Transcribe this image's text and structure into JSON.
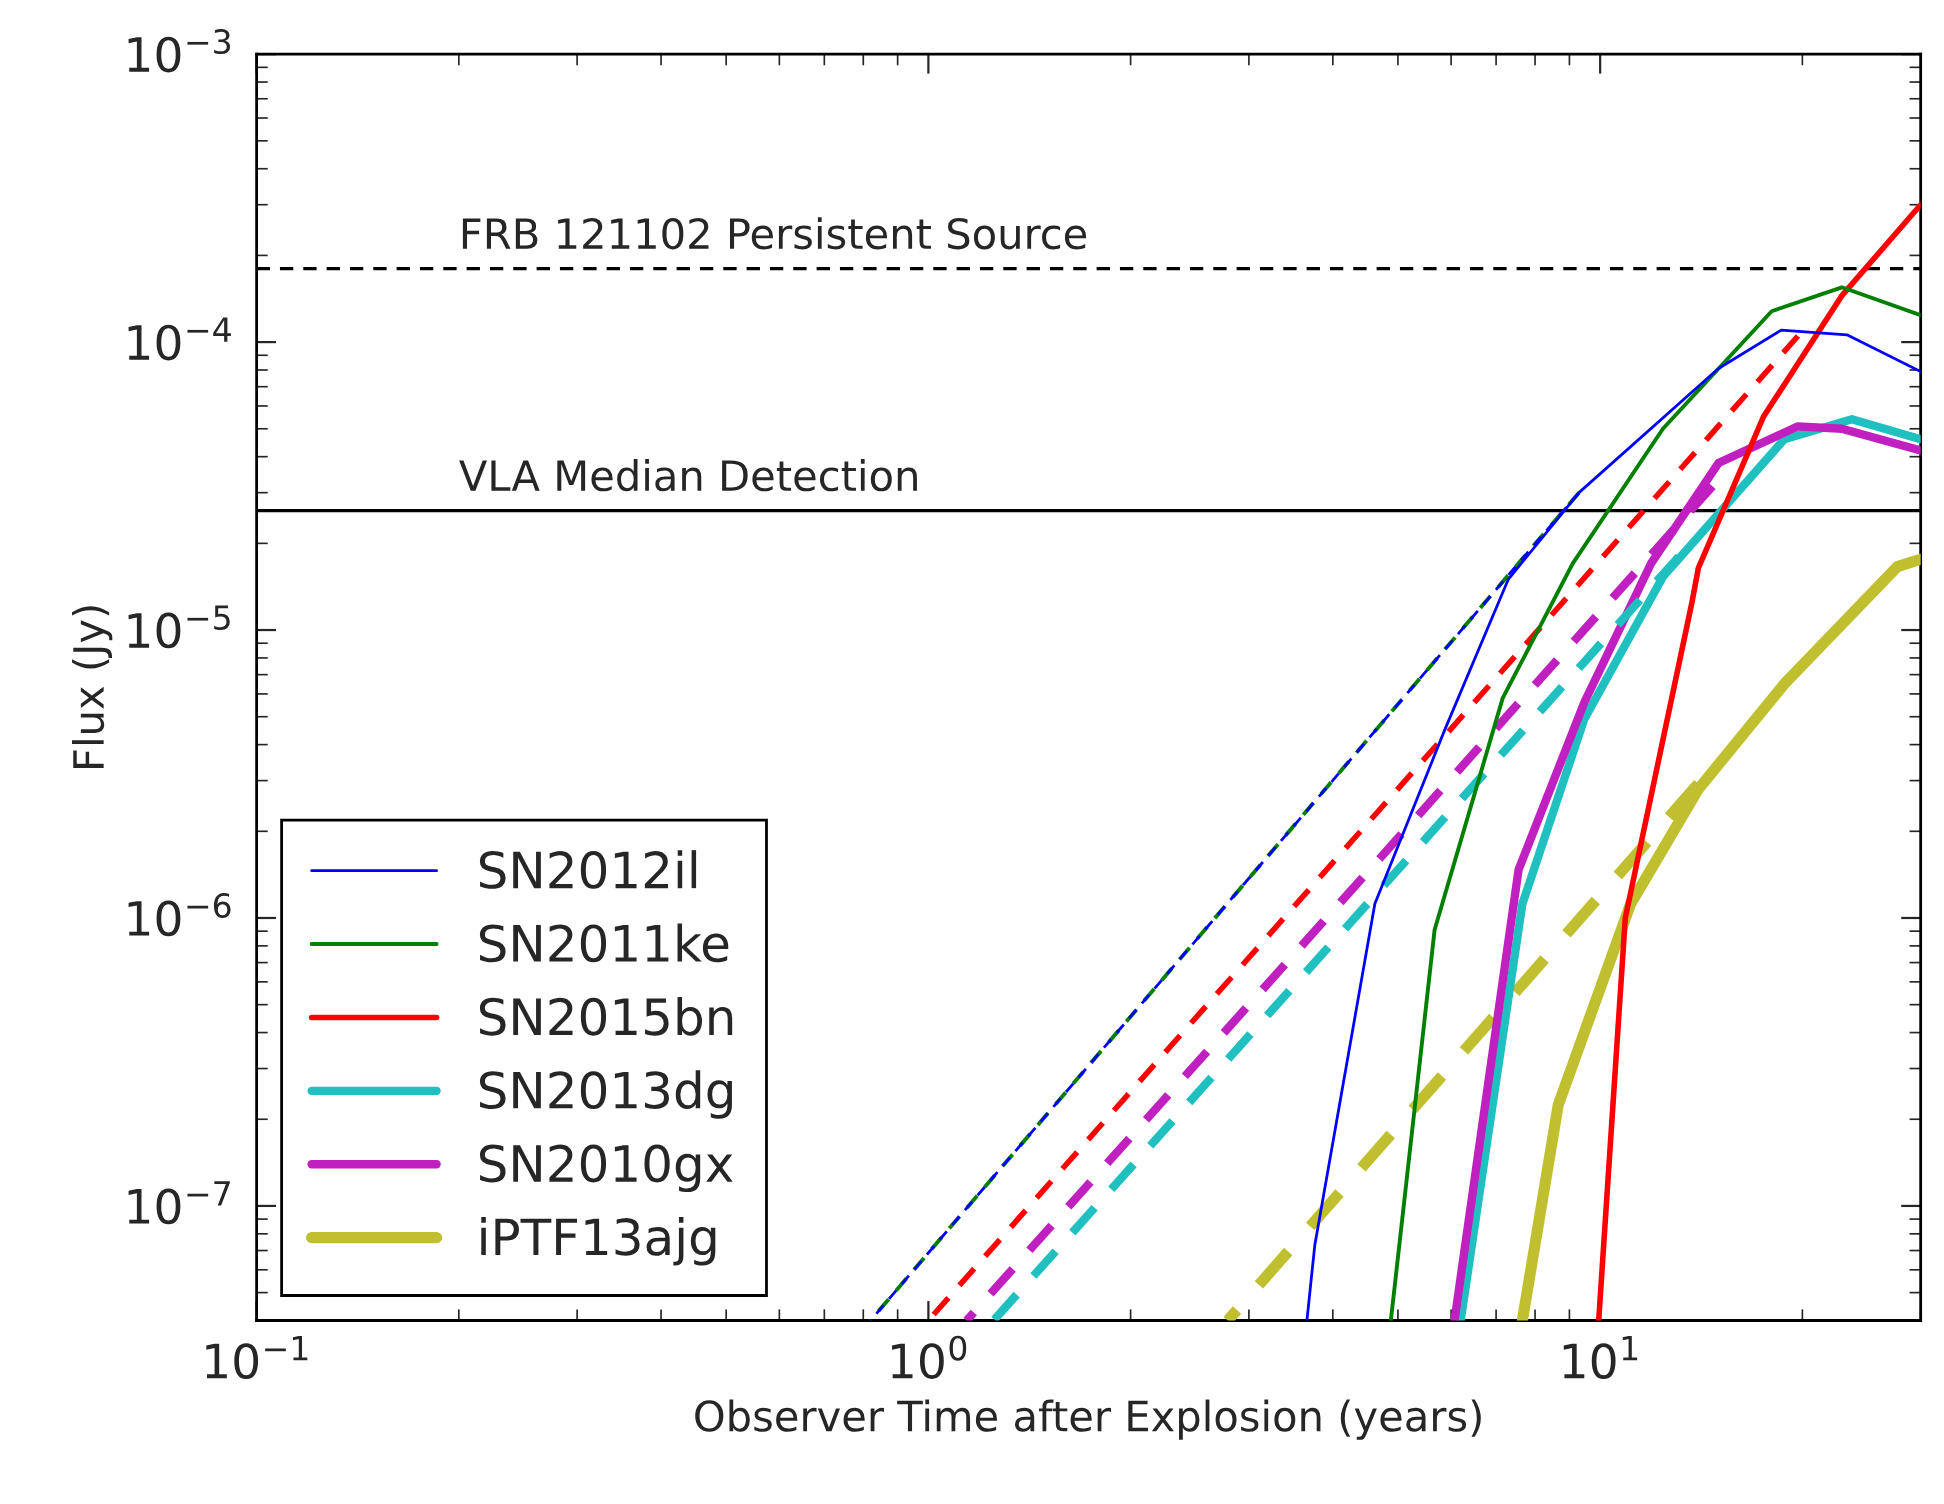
{
  "chart_data": {
    "type": "line",
    "xlabel": "Observer Time after Explosion (years)",
    "ylabel": "Flux (Jy)",
    "log": "xy",
    "grid": false,
    "legend": "bottom left",
    "xlim": [
      0.1,
      30
    ],
    "ylim": [
      4e-08,
      0.001
    ],
    "xticks": [
      {
        "value": 0.1,
        "label": "10$^{−1}$"
      },
      {
        "value": 1,
        "label": "10$^{0}$"
      },
      {
        "value": 10,
        "label": "10$^{1}$"
      }
    ],
    "yticks": [
      {
        "value": 1e-07,
        "label": "10$^{−7}$"
      },
      {
        "value": 1e-06,
        "label": "10$^{−6}$"
      },
      {
        "value": 1e-05,
        "label": "10$^{−5}$"
      },
      {
        "value": 0.0001,
        "label": "10$^{−4}$"
      },
      {
        "value": 0.001,
        "label": "10$^{−3}$"
      }
    ],
    "ref_lines": [
      {
        "axis": "y",
        "value": 0.00018,
        "label": "FRB 121102 Persistent Source",
        "color": "#000000",
        "line_style": "dashed"
      },
      {
        "axis": "y",
        "value": 2.6e-05,
        "label": "VLA Median Detection",
        "color": "#000000",
        "line_style": "solid"
      }
    ],
    "series": [
      {
        "name": "SN2012il",
        "color": "#0000ff",
        "line_style": "solid",
        "x": [
          3.66,
          3.76,
          4.62,
          5.87,
          7.3,
          9.3,
          15.0,
          18.6,
          23.3,
          30
        ],
        "values": [
          4e-08,
          7.3e-08,
          1.12e-06,
          4.5e-06,
          1.5e-05,
          3e-05,
          8.1e-05,
          0.00011,
          0.000106,
          7.9e-05
        ]
      },
      {
        "name": "SN2011ke",
        "color": "#008000",
        "line_style": "solid",
        "x": [
          4.88,
          5.1,
          5.67,
          7.16,
          9.1,
          12.4,
          18.0,
          22.9,
          30
        ],
        "values": [
          4e-08,
          1e-07,
          9.1e-07,
          5.8e-06,
          1.7e-05,
          5e-05,
          0.000128,
          0.000155,
          0.000124
        ]
      },
      {
        "name": "SN2015bn",
        "color": "#ff0000",
        "line_style": "solid",
        "x": [
          9.95,
          10.9,
          13.7,
          14.0,
          17.5,
          22.9,
          30
        ],
        "values": [
          4e-08,
          1e-06,
          1.25e-05,
          1.64e-05,
          5.5e-05,
          0.000145,
          0.0003
        ]
      },
      {
        "name": "SN2013dg",
        "color": "#20c0c0",
        "line_style": "solid",
        "x": [
          6.2,
          7.66,
          9.47,
          12.4,
          18.8,
          23.7,
          30
        ],
        "values": [
          4e-08,
          1.12e-06,
          4.9e-06,
          1.53e-05,
          4.6e-05,
          5.4e-05,
          4.6e-05
        ]
      },
      {
        "name": "SN2010gx",
        "color": "#bf20bf",
        "line_style": "solid",
        "x": [
          6.07,
          7.56,
          9.47,
          11.9,
          15.0,
          19.7,
          22.9,
          30
        ],
        "values": [
          4e-08,
          1.47e-06,
          5.6e-06,
          1.7e-05,
          3.8e-05,
          5.1e-05,
          5e-05,
          4.2e-05
        ]
      },
      {
        "name": "iPTF13ajg",
        "color": "#bfbf30",
        "line_style": "solid",
        "x": [
          7.66,
          8.66,
          11.1,
          14.0,
          18.8,
          27.7,
          30
        ],
        "values": [
          4e-08,
          2.24e-07,
          1.12e-06,
          2.8e-06,
          6.5e-06,
          1.66e-05,
          1.76e-05
        ]
      },
      {
        "color": "#0000ff",
        "line_style": "dashed",
        "x": [
          0.82,
          9.3
        ],
        "values": [
          4e-08,
          3e-05
        ]
      },
      {
        "color": "#008000",
        "line_style": "dashed",
        "x": [
          0.82,
          9.3
        ],
        "values": [
          4e-08,
          3e-05
        ]
      },
      {
        "color": "#ff0000",
        "line_style": "dashed",
        "x": [
          1.0,
          19.7
        ],
        "values": [
          4e-08,
          0.000105
        ]
      },
      {
        "color": "#20c0c0",
        "line_style": "dashed",
        "x": [
          1.25,
          13.1
        ],
        "values": [
          4e-08,
          1.8e-05
        ]
      },
      {
        "color": "#bf20bf",
        "line_style": "dashed",
        "x": [
          1.14,
          14.7
        ],
        "values": [
          4e-08,
          3.16e-05
        ]
      },
      {
        "color": "#bfbf30",
        "line_style": "dashed",
        "x": [
          2.79,
          14.0
        ],
        "values": [
          4e-08,
          2.93e-06
        ]
      }
    ]
  }
}
